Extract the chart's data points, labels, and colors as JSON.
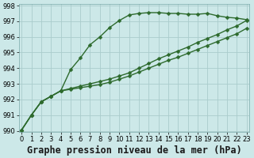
{
  "title": "Graphe pression niveau de la mer (hPa)",
  "background_color": "#cce8e8",
  "grid_color": "#aacccc",
  "line_color": "#2d6a2d",
  "marker_color": "#2d6a2d",
  "xlim": [
    -0.3,
    23.3
  ],
  "ylim": [
    989.9,
    998.1
  ],
  "yticks": [
    990,
    991,
    992,
    993,
    994,
    995,
    996,
    997,
    998
  ],
  "xticks": [
    0,
    1,
    2,
    3,
    4,
    5,
    6,
    7,
    8,
    9,
    10,
    11,
    12,
    13,
    14,
    15,
    16,
    17,
    18,
    19,
    20,
    21,
    22,
    23
  ],
  "series": [
    [
      990.05,
      991.0,
      991.85,
      992.2,
      992.55,
      993.9,
      994.65,
      995.5,
      996.0,
      996.6,
      997.05,
      997.4,
      997.5,
      997.55,
      997.55,
      997.5,
      997.5,
      997.45,
      997.45,
      997.5,
      997.35,
      997.25,
      997.2,
      997.1
    ],
    [
      990.05,
      991.0,
      991.85,
      992.2,
      992.55,
      992.7,
      992.85,
      993.0,
      993.15,
      993.3,
      993.5,
      993.7,
      994.0,
      994.3,
      994.6,
      994.85,
      995.1,
      995.35,
      995.65,
      995.9,
      996.15,
      996.45,
      996.7,
      997.05
    ],
    [
      990.05,
      991.0,
      991.85,
      992.2,
      992.55,
      992.65,
      992.75,
      992.85,
      992.95,
      993.1,
      993.3,
      993.5,
      993.75,
      994.0,
      994.25,
      994.5,
      994.7,
      994.95,
      995.2,
      995.45,
      995.7,
      995.95,
      996.2,
      996.55
    ]
  ],
  "linewidths": [
    1.0,
    1.0,
    1.0
  ],
  "marker": "D",
  "markersize": 2.5,
  "title_fontsize": 8.5,
  "tick_fontsize": 6.0
}
